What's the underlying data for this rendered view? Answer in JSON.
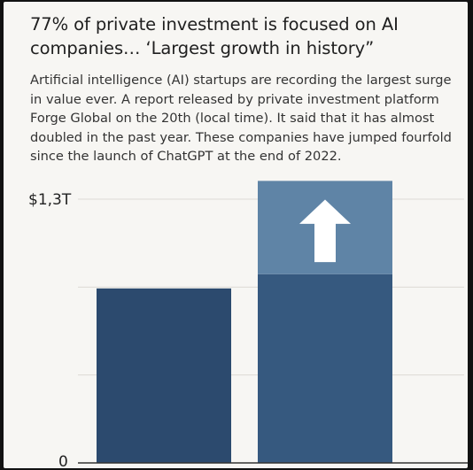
{
  "headline": "77% of private investment is focused on AI companies… ‘Largest growth in history”",
  "subtitle": "Artificial intelligence (AI) startups are recording the largest surge in value ever. A report released by private investment platform Forge Global on the 20th (local time). It said that it has almost doubled in the past year. These companies have jumped fourfold since the launch of ChatGPT at the end of 2022.",
  "colors": {
    "background": "#f7f6f3",
    "bar_dark": "#2c4a6e",
    "bar_mid": "#36597f",
    "bar_light": "#5f84a6",
    "arrow": "#ffffff",
    "axis": "#333333",
    "grid": "#dcdad5"
  },
  "chart_data": {
    "type": "bar",
    "categories": [
      "",
      ""
    ],
    "y_tick_labels": {
      "top": "$1,3T",
      "bottom": "0"
    },
    "ylim": [
      0,
      1.3
    ],
    "grid": true,
    "series": [
      {
        "values": [
          0.86,
          0.93
        ]
      },
      {
        "values": [
          0,
          0.46
        ]
      }
    ],
    "annotation": "up-arrow-icon"
  }
}
